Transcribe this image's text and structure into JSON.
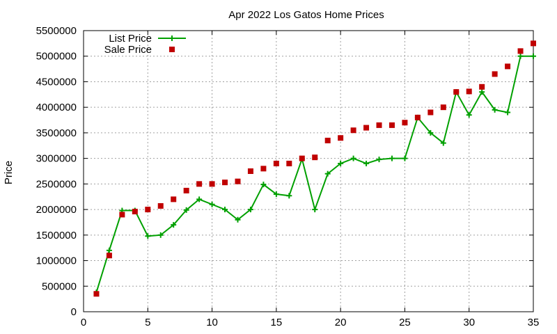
{
  "chart_data": {
    "type": "line",
    "title": "Apr 2022 Los Gatos Home Prices",
    "xlabel": "",
    "ylabel": "Price",
    "xlim": [
      0,
      35
    ],
    "ylim": [
      0,
      5500000
    ],
    "x_ticks": [
      0,
      5,
      10,
      15,
      20,
      25,
      30,
      35
    ],
    "y_ticks": [
      0,
      500000,
      1000000,
      1500000,
      2000000,
      2500000,
      3000000,
      3500000,
      4000000,
      4500000,
      5000000,
      5500000
    ],
    "grid": true,
    "legend_position": "top-left",
    "x": [
      1,
      2,
      3,
      4,
      5,
      6,
      7,
      8,
      9,
      10,
      11,
      12,
      13,
      14,
      15,
      16,
      17,
      18,
      19,
      20,
      21,
      22,
      23,
      24,
      25,
      26,
      27,
      28,
      29,
      30,
      31,
      32,
      33,
      34,
      35
    ],
    "series": [
      {
        "name": "List Price",
        "style": "line-with-plus-markers",
        "color": "#00a000",
        "values": [
          380000,
          1200000,
          1980000,
          1980000,
          1480000,
          1500000,
          1700000,
          1990000,
          2200000,
          2100000,
          2000000,
          1800000,
          2000000,
          2490000,
          2300000,
          2270000,
          2990000,
          2000000,
          2700000,
          2900000,
          3000000,
          2900000,
          2980000,
          3000000,
          3000000,
          3800000,
          3500000,
          3300000,
          4300000,
          3850000,
          4300000,
          3950000,
          3900000,
          5000000,
          5000000
        ]
      },
      {
        "name": "Sale Price",
        "style": "square-markers",
        "color": "#c00000",
        "values": [
          350000,
          1100000,
          1900000,
          1960000,
          2000000,
          2070000,
          2200000,
          2370000,
          2500000,
          2500000,
          2530000,
          2550000,
          2750000,
          2800000,
          2900000,
          2900000,
          3000000,
          3020000,
          3350000,
          3400000,
          3550000,
          3600000,
          3650000,
          3650000,
          3700000,
          3800000,
          3900000,
          4000000,
          4300000,
          4310000,
          4400000,
          4650000,
          4800000,
          5100000,
          5250000
        ]
      }
    ]
  }
}
